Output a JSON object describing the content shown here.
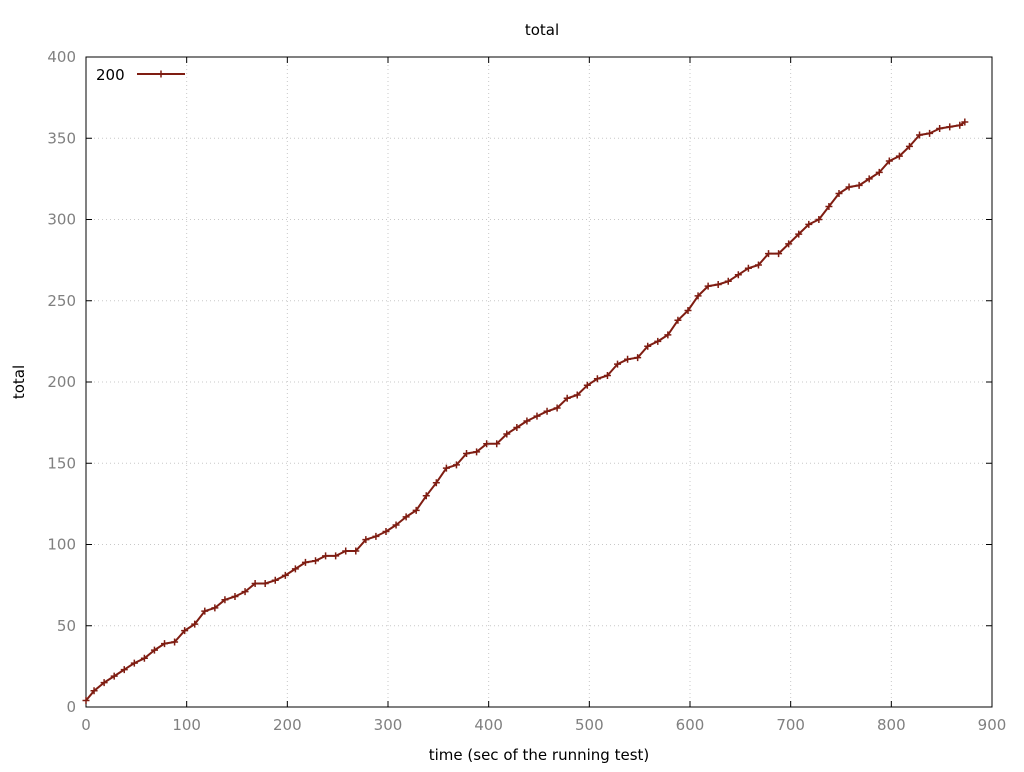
{
  "chart_data": {
    "type": "line",
    "title": "total",
    "xlabel": "time (sec of the running test)",
    "ylabel": "total",
    "xlim": [
      0,
      900
    ],
    "ylim": [
      0,
      400
    ],
    "xticks": [
      "0",
      "100",
      "200",
      "300",
      "400",
      "500",
      "600",
      "700",
      "800",
      "900"
    ],
    "yticks": [
      "0",
      "50",
      "100",
      "150",
      "200",
      "250",
      "300",
      "350",
      "400"
    ],
    "grid": true,
    "legend_position": "top-left",
    "series": [
      {
        "name": "200",
        "color": "#7f1d12",
        "marker": "plus",
        "x": [
          0,
          8,
          18,
          28,
          38,
          48,
          58,
          68,
          78,
          88,
          98,
          108,
          118,
          128,
          138,
          148,
          158,
          168,
          178,
          188,
          198,
          208,
          218,
          228,
          238,
          248,
          258,
          268,
          278,
          288,
          298,
          308,
          318,
          328,
          338,
          348,
          358,
          368,
          378,
          388,
          398,
          408,
          418,
          428,
          438,
          448,
          458,
          468,
          478,
          488,
          498,
          508,
          518,
          528,
          538,
          548,
          558,
          568,
          578,
          588,
          598,
          608,
          618,
          628,
          638,
          648,
          658,
          668,
          678,
          688,
          698,
          708,
          718,
          728,
          738,
          748,
          758,
          768,
          778,
          788,
          798,
          808,
          818,
          828,
          838,
          848,
          858,
          868,
          873
        ],
        "y": [
          4,
          10,
          15,
          19,
          23,
          27,
          30,
          35,
          39,
          40,
          47,
          51,
          59,
          61,
          66,
          68,
          71,
          76,
          76,
          78,
          81,
          85,
          89,
          90,
          93,
          93,
          96,
          96,
          103,
          105,
          108,
          112,
          117,
          121,
          130,
          138,
          147,
          149,
          156,
          157,
          162,
          162,
          168,
          172,
          176,
          179,
          182,
          184,
          190,
          192,
          198,
          202,
          204,
          211,
          214,
          215,
          222,
          225,
          229,
          238,
          244,
          253,
          259,
          260,
          262,
          266,
          270,
          272,
          279,
          279,
          285,
          291,
          297,
          300,
          308,
          316,
          320,
          321,
          325,
          329,
          336,
          339,
          345,
          352,
          353,
          356,
          357,
          358,
          360
        ]
      }
    ]
  }
}
